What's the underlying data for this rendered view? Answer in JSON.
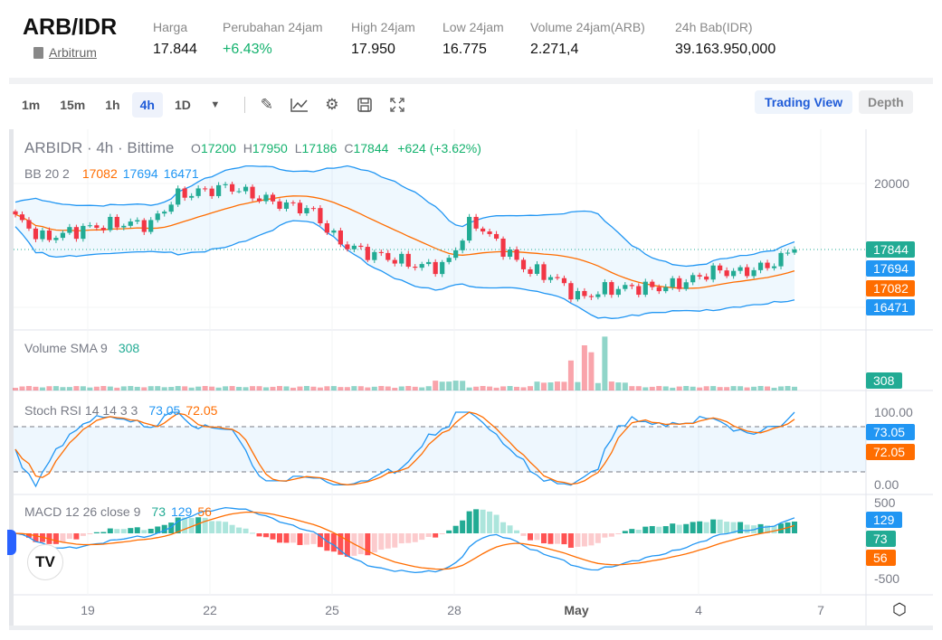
{
  "header": {
    "pair": "ARB/IDR",
    "coin_name": "Arbitrum",
    "stats": [
      {
        "label": "Harga",
        "value": "17.844"
      },
      {
        "label": "Perubahan 24jam",
        "value": "+6.43%",
        "color": "#14b26e"
      },
      {
        "label": "High 24jam",
        "value": "17.950"
      },
      {
        "label": "Low 24jam",
        "value": "16.775"
      },
      {
        "label": "Volume 24jam(ARB)",
        "value": "2.271,4"
      },
      {
        "label": "24h Bab(IDR)",
        "value": "39.163.950,000"
      }
    ]
  },
  "toolbar": {
    "timeframes": [
      "1m",
      "15m",
      "1h",
      "4h",
      "1D"
    ],
    "active": "4h",
    "icons": [
      "dropdown-icon",
      "drawing-pencil-icon",
      "indicators-icon",
      "settings-gear-icon",
      "save-icon",
      "fullscreen-icon"
    ],
    "trading_view": "Trading View",
    "depth": "Depth"
  },
  "chart": {
    "symbol_line": "ARBIDR · 4h · Bittime",
    "ohlc": {
      "o_label": "O",
      "o": "17200",
      "h_label": "H",
      "h": "17950",
      "l_label": "L",
      "l": "17186",
      "c_label": "C",
      "c": "17844",
      "change": "+624 (+3.62%)"
    },
    "bb": {
      "label": "BB 20 2",
      "basis": "17082",
      "upper": "17694",
      "lower": "16471"
    },
    "volume": {
      "label": "Volume SMA 9",
      "value": "308"
    },
    "stoch": {
      "label": "Stoch RSI 14 14 3 3",
      "k": "73.05",
      "d": "72.05"
    },
    "macd": {
      "label": "MACD 12 26 close 9",
      "hist": "73",
      "macd": "129",
      "signal": "56"
    },
    "price_axis": {
      "tick": "20000",
      "last": "17844",
      "upper": "17694",
      "basis": "17082",
      "lower": "16471"
    },
    "stoch_axis": [
      "100.00",
      "0.00"
    ],
    "macd_axis": [
      "500",
      "-500"
    ],
    "dates": [
      "19",
      "22",
      "25",
      "28",
      "May",
      "4",
      "7"
    ],
    "colors": {
      "up": "#22ab94",
      "down": "#f23645",
      "blue": "#2196f3",
      "orange": "#ff6d00"
    }
  },
  "chart_data": {
    "type": "candlestick",
    "interval": "4h",
    "close_samples": [
      18900,
      18200,
      18400,
      18600,
      18700,
      18650,
      19600,
      19750,
      19900,
      19550,
      19300,
      19150,
      18100,
      17750,
      17550,
      17300,
      17300,
      18800,
      18000,
      17200,
      16950,
      16250,
      16550,
      16600,
      16600,
      16800,
      17150,
      17100,
      17300,
      17844
    ],
    "x_ticks": [
      "19",
      "22",
      "25",
      "28",
      "May",
      "4",
      "7"
    ],
    "y_ticks": [
      20000
    ]
  }
}
